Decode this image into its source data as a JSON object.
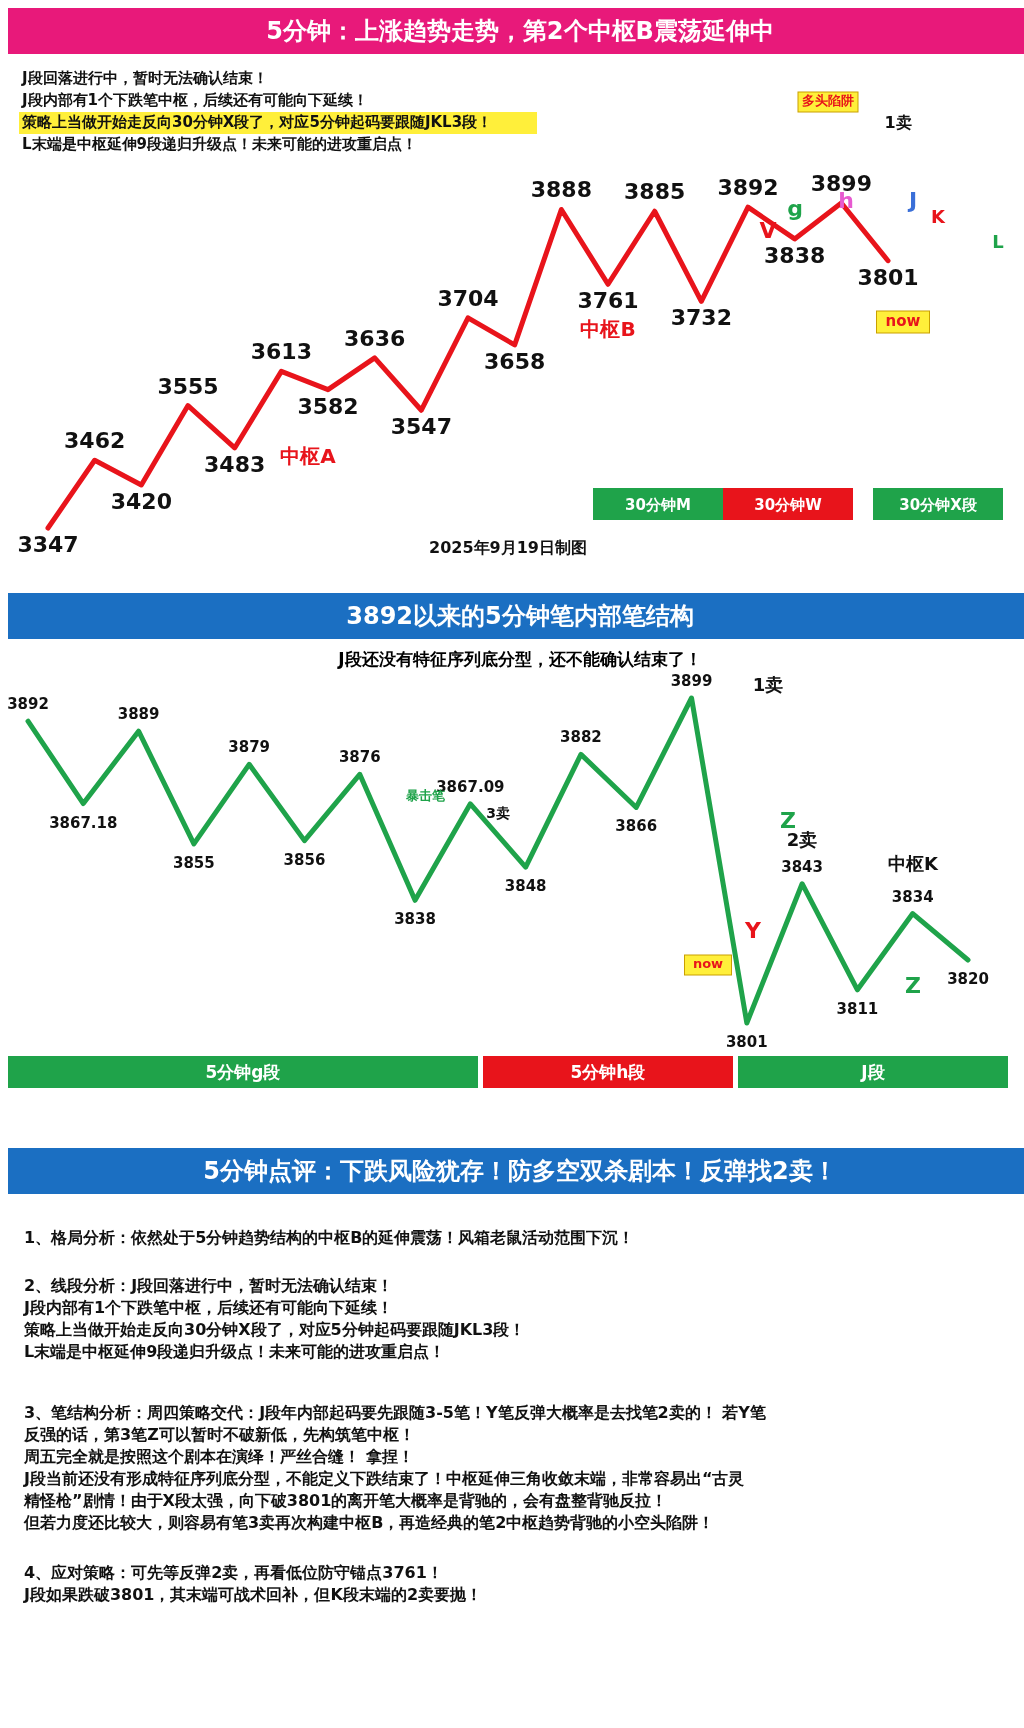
{
  "chart_data": [
    {
      "type": "line",
      "title": "5分钟：上涨趋势走势，第2个中枢B震荡延伸中",
      "categories": [
        null,
        null,
        null,
        null,
        null,
        null,
        null,
        null,
        null,
        null,
        null,
        null,
        null,
        null,
        null,
        null,
        null,
        null,
        null
      ],
      "series": [
        {
          "color": "#e8141b",
          "values": [
            3347,
            3462,
            3420,
            3555,
            3483,
            3613,
            3582,
            3636,
            3547,
            3704,
            3658,
            3888,
            3761,
            3885,
            3732,
            3892,
            3838,
            3899,
            3801
          ]
        }
      ],
      "data_labels": true,
      "annotations": [
        "J段回落进行中，暂时无法确认结束！",
        "J段内部有1个下跌笔中枢，后续还有可能向下延续！",
        "策略上当做开始走反向30分钟X段了，对应5分钟起码要跟随JKL3段！",
        "L末端是中枢延伸9段递归升级点！未来可能的进攻重启点！",
        "中枢A",
        "中枢B",
        "多头陷阱",
        "1卖",
        "now",
        "V",
        "g",
        "h",
        "J",
        "K",
        "L",
        "2025年9月19日制图",
        "30分钟M",
        "30分钟W",
        "30分钟X段"
      ]
    },
    {
      "type": "line",
      "title": "3892以来的5分钟笔内部笔结构",
      "subtitle": "J段还没有特征序列底分型，还不能确认结束了！",
      "categories": [
        null,
        null,
        null,
        null,
        null,
        null,
        null,
        null,
        null,
        null,
        null,
        null,
        null,
        null,
        null,
        null,
        null,
        null
      ],
      "series": [
        {
          "color": "#1fa34a",
          "values": [
            3892,
            3867.18,
            3889,
            3855,
            3879,
            3856,
            3876,
            3838,
            3867.09,
            3848,
            3882,
            3866,
            3899,
            3801,
            3843,
            3811,
            3834,
            3820
          ]
        }
      ],
      "data_labels": true,
      "annotations": [
        "1卖",
        "暴击笔",
        "3卖",
        "Z",
        "2卖",
        "中枢K",
        "Y",
        "Z",
        "now",
        "5分钟g段",
        "5分钟h段",
        "J段"
      ]
    },
    {
      "type": "other",
      "title": "5分钟点评：下跌风险犹存！防多空双杀剧本！反弹找2卖！",
      "annotations": [
        "1、格局分析：依然处于5分钟趋势结构的中枢B的延伸震荡！风箱老鼠活动范围下沉！",
        "2、线段分析：J段回落进行中，暂时无法确认结束！",
        "J段内部有1个下跌笔中枢，后续还有可能向下延续！",
        "策略上当做开始走反向30分钟X段了，对应5分钟起码要跟随JKL3段！",
        "L末端是中枢延伸9段递归升级点！未来可能的进攻重启点！",
        "3、笔结构分析：周四策略交代：J段年内部起码要先跟随3-5笔！Y笔反弹大概率是去找笔2卖的！ 若Y笔",
        "反强的话，第3笔Z可以暂时不破新低，先构筑笔中枢！",
        "周五完全就是按照这个剧本在演绎！严丝合缝！ 拿捏！",
        "J段当前还没有形成特征序列底分型，不能定义下跌结束了！中枢延伸三角收敛末端，非常容易出“古灵",
        "精怪枪”剧情！由于X段太强，向下破3801的离开笔大概率是背驰的，会有盘整背驰反拉！",
        "但若力度还比较大，则容易有笔3卖再次构建中枢B，再造经典的笔2中枢趋势背驰的小空头陷阱！",
        "4、应对策略：可先等反弹2卖，再看低位防守锚点3761！",
        "J段如果跌破3801，其末端可战术回补，但K段末端的2卖要抛！"
      ]
    }
  ]
}
